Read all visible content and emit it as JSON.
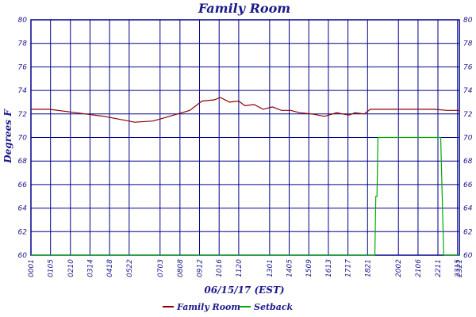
{
  "chart_data": {
    "type": "line",
    "title": "Family Room",
    "xlabel": "06/15/17 (EST)",
    "ylabel": "Degrees F",
    "ylim": [
      60,
      80
    ],
    "yticks": [
      60,
      62,
      64,
      66,
      68,
      70,
      72,
      74,
      76,
      78,
      80
    ],
    "xlim_minutes": [
      1,
      1401
    ],
    "xticks": [
      "00:01",
      "01:05",
      "02:10",
      "03:14",
      "04:18",
      "05:22",
      "07:03",
      "08:08",
      "09:12",
      "10:16",
      "11:20",
      "13:01",
      "14:05",
      "15:09",
      "16:13",
      "17:17",
      "18:21",
      "20:02",
      "21:06",
      "22:11",
      "23:15",
      "23:21"
    ],
    "grid": true,
    "legend_position": "bottom",
    "colors": {
      "Family Room": "#8b0000",
      "Setback": "#00aa00",
      "grid": "#00008b",
      "frame": "#00008b"
    },
    "series": [
      {
        "name": "Family Room",
        "x": [
          1,
          60,
          120,
          180,
          240,
          300,
          340,
          400,
          440,
          480,
          520,
          560,
          600,
          620,
          650,
          680,
          700,
          730,
          760,
          790,
          820,
          850,
          880,
          920,
          960,
          1000,
          1040,
          1060,
          1090,
          1110,
          1130,
          1150,
          1170,
          1190,
          1210,
          1240,
          1280,
          1320,
          1360,
          1401
        ],
        "values": [
          72.4,
          72.4,
          72.2,
          72.0,
          71.8,
          71.5,
          71.3,
          71.4,
          71.7,
          72.0,
          72.3,
          73.1,
          73.2,
          73.4,
          73.0,
          73.1,
          72.7,
          72.8,
          72.4,
          72.6,
          72.3,
          72.3,
          72.1,
          72.0,
          71.8,
          72.1,
          71.9,
          72.1,
          72.0,
          72.4,
          72.4,
          72.4,
          72.4,
          72.4,
          72.4,
          72.4,
          72.4,
          72.4,
          72.3,
          72.3
        ]
      },
      {
        "name": "Setback",
        "x": [
          1,
          1125,
          1128,
          1132,
          1135,
          1340,
          1345,
          1350,
          1401
        ],
        "values": [
          60,
          60,
          65,
          65,
          70,
          70,
          65,
          60,
          60
        ]
      }
    ]
  }
}
